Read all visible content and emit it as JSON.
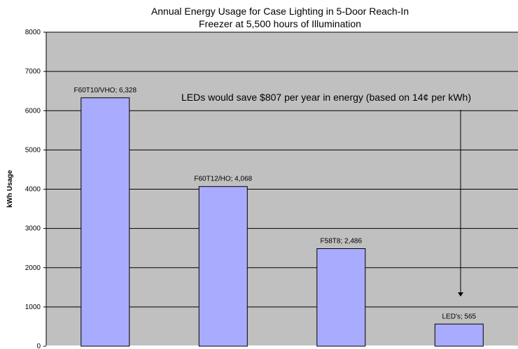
{
  "chart_data": {
    "type": "bar",
    "title_lines": [
      "Annual Energy Usage for Case Lighting in 5-Door Reach-In",
      "Freezer at 5,500 hours of Illumination"
    ],
    "xlabel": "",
    "ylabel": "kWh Usage",
    "ylim": [
      0,
      8000
    ],
    "yticks": [
      "0",
      "1000",
      "2000",
      "3000",
      "4000",
      "5000",
      "6000",
      "7000",
      "8000"
    ],
    "categories": [
      "F60T10/VHO",
      "F60T12/HO",
      "F58T8",
      "LED's"
    ],
    "values": [
      6328,
      4068,
      2486,
      565
    ],
    "data_labels": [
      "F60T10/VHO; 6,328",
      "F60T12/HO; 4,068",
      "F58T8; 2,486",
      "LED's; 565"
    ],
    "annotation": "LEDs would save $807 per year in energy (based on 14¢ per kWh)",
    "grid": true,
    "plot_bg": "#c0c0c0",
    "bar_color": "#a9abff",
    "bar_edge": "#000000",
    "legend": "none"
  }
}
